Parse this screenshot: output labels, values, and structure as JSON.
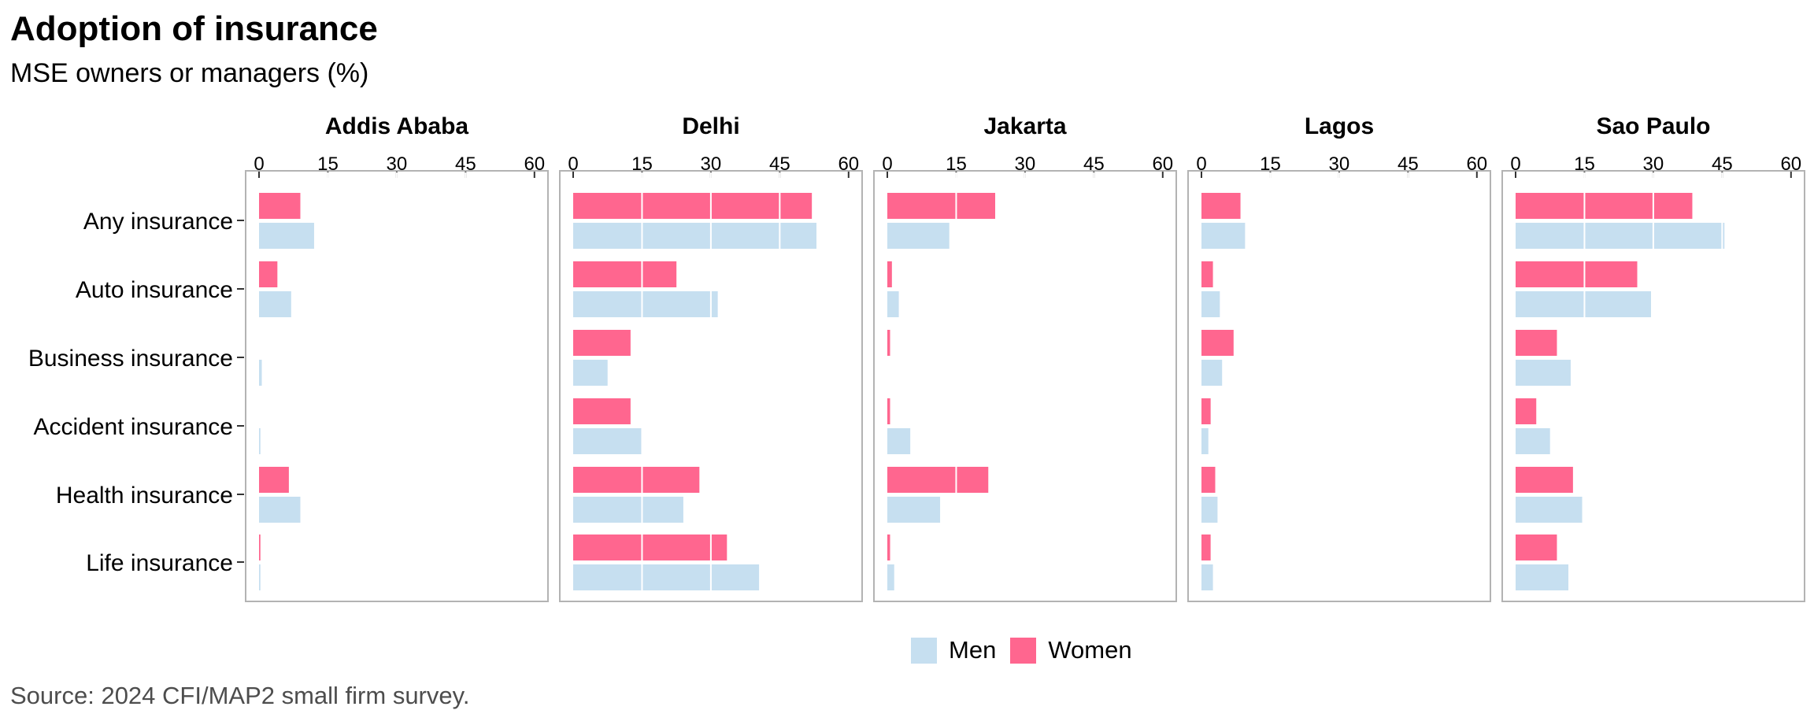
{
  "title": "Adoption of insurance",
  "subtitle": "MSE owners or managers (%)",
  "source": "Source: 2024 CFI/MAP2 small firm survey.",
  "colors": {
    "men": "#c6dff0",
    "women": "#ff668f"
  },
  "legend": {
    "men": "Men",
    "women": "Women"
  },
  "chart_data": {
    "type": "bar",
    "orientation": "horizontal",
    "facets": [
      "Addis Ababa",
      "Delhi",
      "Jakarta",
      "Lagos",
      "Sao Paulo"
    ],
    "categories": [
      "Any insurance",
      "Auto insurance",
      "Business insurance",
      "Accident insurance",
      "Health insurance",
      "Life insurance"
    ],
    "xticks": [
      "0",
      "15",
      "30",
      "45",
      "60"
    ],
    "xlim": [
      0,
      62
    ],
    "series": [
      {
        "name": "Men",
        "values": {
          "Addis Ababa": [
            12,
            7,
            0.6,
            0.3,
            9,
            0.3
          ],
          "Delhi": [
            53,
            31.5,
            7.5,
            15,
            24,
            40.5
          ],
          "Jakarta": [
            13.5,
            2.5,
            0,
            5,
            11.5,
            1.5
          ],
          "Lagos": [
            9.5,
            4,
            4.5,
            1.5,
            3.5,
            2.5
          ],
          "Sao Paulo": [
            45.5,
            29.5,
            12,
            7.5,
            14.5,
            11.5
          ]
        }
      },
      {
        "name": "Women",
        "values": {
          "Addis Ababa": [
            9,
            4,
            0,
            0,
            6.5,
            0.3
          ],
          "Delhi": [
            52,
            22.5,
            12.5,
            12.5,
            27.5,
            33.5
          ],
          "Jakarta": [
            23.5,
            1,
            0.6,
            0.6,
            22,
            0.6
          ],
          "Lagos": [
            8.5,
            2.5,
            7,
            2,
            3,
            2
          ],
          "Sao Paulo": [
            38.5,
            26.5,
            9,
            4.5,
            12.5,
            9
          ]
        }
      }
    ]
  }
}
